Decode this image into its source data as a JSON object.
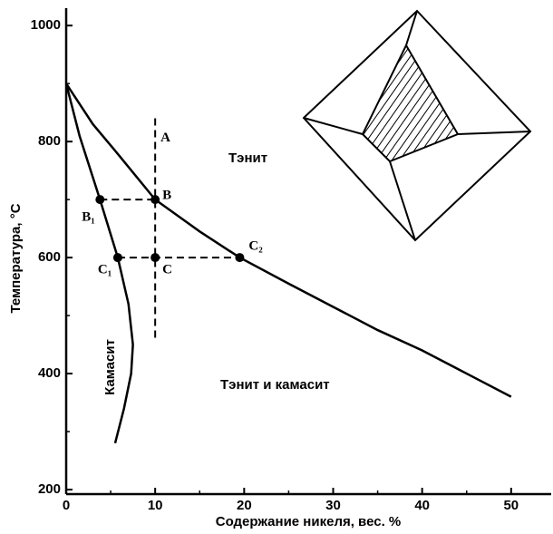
{
  "chart_data": {
    "type": "line",
    "x_label": "Содержание никеля, вес. %",
    "y_label": "Температура, °C",
    "xlim": [
      0,
      54.5
    ],
    "xticks": [
      0,
      10,
      20,
      30,
      40,
      50
    ],
    "ylim": [
      200,
      1030
    ],
    "yticks": [
      200,
      400,
      600,
      800,
      1000
    ],
    "series": [
      {
        "color": "#000000",
        "x": [
          0,
          3,
          6,
          10,
          15,
          19.5,
          25,
          30,
          35,
          40,
          45,
          50
        ],
        "values": [
          900,
          830,
          775,
          700,
          645,
          600,
          555,
          515,
          475,
          440,
          400,
          360
        ]
      },
      {
        "color": "#000000",
        "x": [
          0,
          1.5,
          3.8,
          5.8,
          7,
          7.5,
          7.3,
          6.5,
          5.5
        ],
        "values": [
          900,
          810,
          700,
          600,
          520,
          450,
          400,
          340,
          280
        ]
      }
    ],
    "dashed": [
      {
        "x": [
          10,
          10
        ],
        "values": [
          840,
          460
        ]
      },
      {
        "x": [
          3.8,
          10
        ],
        "values": [
          700,
          700
        ]
      },
      {
        "x": [
          5.8,
          19.5
        ],
        "values": [
          600,
          600
        ]
      }
    ],
    "points": [
      {
        "label": "B₁",
        "x": 3.8,
        "y": 700
      },
      {
        "label": "B",
        "x": 10,
        "y": 700
      },
      {
        "label": "C₁",
        "x": 5.8,
        "y": 600
      },
      {
        "label": "C",
        "x": 10,
        "y": 600
      },
      {
        "label": "C₂",
        "x": 19.5,
        "y": 600
      }
    ],
    "line_label": "A",
    "regions": [
      "Тэнит",
      "Тэнит и камасит",
      "Камасит"
    ]
  }
}
